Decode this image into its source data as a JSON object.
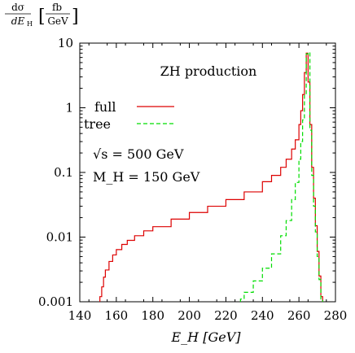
{
  "chart_data": {
    "type": "line",
    "title": "ZH production",
    "xlabel": "E_H [GeV]",
    "ylabel": "dσ/dE_H [fb/GeV]",
    "xlim": [
      140,
      280
    ],
    "ylim": [
      0.001,
      10
    ],
    "yscale": "log",
    "xticks": [
      "140",
      "160",
      "180",
      "200",
      "220",
      "240",
      "260",
      "280"
    ],
    "yticks": [
      "0.001",
      "0.01",
      "0.1",
      "1",
      "10"
    ],
    "legend_position": "upper-left",
    "annotations": [
      "√s = 500 GeV",
      "M_H = 150 GeV"
    ],
    "series": [
      {
        "name": "full",
        "color": "#dd0000",
        "style": "solid-step",
        "x": [
          151,
          152,
          153,
          154,
          156,
          158,
          160,
          163,
          166,
          170,
          175,
          180,
          190,
          200,
          210,
          220,
          230,
          240,
          245,
          250,
          253,
          256,
          258,
          260,
          261,
          262,
          263,
          264,
          265,
          266,
          267,
          268,
          269,
          270,
          271,
          272
        ],
        "y": [
          0.0012,
          0.0017,
          0.0024,
          0.0031,
          0.0042,
          0.0053,
          0.0064,
          0.0077,
          0.0089,
          0.0105,
          0.0125,
          0.0145,
          0.019,
          0.024,
          0.03,
          0.038,
          0.05,
          0.072,
          0.09,
          0.12,
          0.16,
          0.23,
          0.32,
          0.55,
          0.9,
          1.6,
          3.5,
          7.0,
          2.5,
          0.55,
          0.12,
          0.04,
          0.015,
          0.006,
          0.0025,
          0.0012
        ]
      },
      {
        "name": "tree",
        "color": "#00dd00",
        "style": "dashed-step",
        "x": [
          228,
          230,
          235,
          240,
          245,
          250,
          253,
          256,
          258,
          260,
          261,
          262,
          263,
          264,
          265,
          266,
          267,
          268,
          269,
          270,
          271,
          272
        ],
        "y": [
          0.0011,
          0.0014,
          0.0021,
          0.0033,
          0.0055,
          0.0105,
          0.018,
          0.038,
          0.07,
          0.16,
          0.3,
          0.65,
          1.6,
          6.8,
          7.2,
          0.45,
          0.09,
          0.03,
          0.012,
          0.005,
          0.0022,
          0.0011
        ]
      }
    ]
  }
}
